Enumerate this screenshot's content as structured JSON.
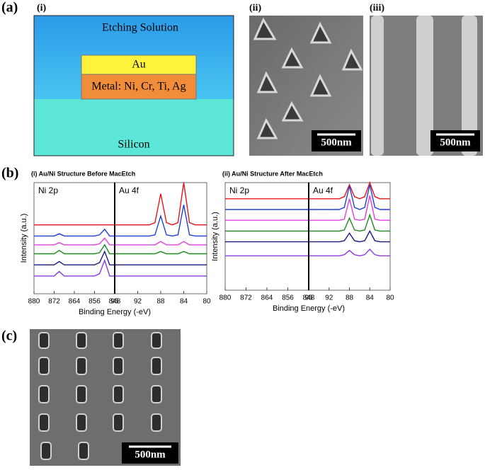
{
  "panels": {
    "a": {
      "label": "(a)",
      "i": {
        "label": "(i)",
        "solution": "Etching Solution",
        "au": "Au",
        "metal": "Metal: Ni, Cr, Ti, Ag",
        "silicon": "Silicon"
      },
      "ii": {
        "label": "(ii)",
        "scale": "500nm"
      },
      "iii": {
        "label": "(iii)",
        "scale": "500nm"
      }
    },
    "b": {
      "label": "(b)"
    },
    "c": {
      "label": "(c)",
      "scale": "500nm"
    }
  },
  "chart_data": [
    {
      "type": "line",
      "title": "(i) Au/Ni Structure Before MacEtch",
      "annotation": "Ni 2p",
      "y_label": "Intensity (a.u.)",
      "x_label": "Binding Energy (-eV)",
      "x": [
        880,
        878,
        876,
        874,
        872,
        870,
        868,
        866,
        864,
        862,
        860,
        858,
        856,
        854,
        852,
        850,
        848
      ],
      "xlim": [
        880,
        848
      ],
      "xticks": [
        880,
        872,
        864,
        856,
        848
      ],
      "ylim": [
        0,
        100
      ],
      "series": [
        {
          "color": "#e8141c",
          "values": [
            62,
            62,
            62,
            62,
            62,
            62,
            62,
            62,
            62,
            62,
            62,
            62,
            62,
            62,
            62,
            62,
            62
          ]
        },
        {
          "color": "#1f3fd6",
          "values": [
            52,
            52,
            52,
            52,
            52,
            54,
            52,
            52,
            52,
            52,
            52,
            52,
            52,
            53,
            58,
            52,
            52
          ]
        },
        {
          "color": "#e040e0",
          "values": [
            44,
            44,
            44,
            44,
            44,
            46,
            44,
            44,
            44,
            44,
            44,
            44,
            44,
            45,
            50,
            44,
            44
          ]
        },
        {
          "color": "#1f8a1f",
          "values": [
            36,
            36,
            36,
            36,
            36,
            39,
            36,
            36,
            36,
            36,
            36,
            36,
            36,
            37,
            44,
            36,
            36
          ]
        },
        {
          "color": "#1a1a80",
          "values": [
            26,
            26,
            26,
            26,
            26,
            29,
            26,
            26,
            26,
            26,
            26,
            26,
            26,
            28,
            38,
            26,
            26
          ]
        },
        {
          "color": "#8a3adf",
          "values": [
            16,
            16,
            16,
            16,
            16,
            20,
            16,
            16,
            16,
            16,
            16,
            16,
            16,
            18,
            30,
            16,
            16
          ]
        }
      ]
    },
    {
      "type": "line",
      "annotation": "Au 4f",
      "x": [
        96,
        95,
        94,
        93,
        92,
        91,
        90,
        89,
        88,
        87,
        86,
        85,
        84,
        83,
        82,
        81,
        80
      ],
      "xlim": [
        96,
        80
      ],
      "xticks": [
        96,
        92,
        88,
        84,
        80
      ],
      "ylim": [
        0,
        100
      ],
      "series": [
        {
          "color": "#e8141c",
          "values": [
            62,
            62,
            62,
            62,
            62,
            62,
            62,
            64,
            90,
            64,
            62,
            64,
            100,
            64,
            62,
            62,
            62
          ]
        },
        {
          "color": "#1f3fd6",
          "values": [
            52,
            52,
            52,
            52,
            52,
            52,
            52,
            53,
            70,
            53,
            52,
            53,
            80,
            53,
            52,
            52,
            52
          ]
        },
        {
          "color": "#e040e0",
          "values": [
            44,
            44,
            44,
            44,
            44,
            44,
            44,
            44,
            47,
            44,
            44,
            44,
            47,
            44,
            44,
            44,
            44
          ]
        },
        {
          "color": "#1f8a1f",
          "values": [
            36,
            36,
            36,
            36,
            36,
            36,
            36,
            36,
            38,
            36,
            36,
            36,
            38,
            36,
            36,
            36,
            36
          ]
        },
        {
          "color": "#1a1a80",
          "values": [
            26,
            26,
            26,
            26,
            26,
            26,
            26,
            26,
            26,
            26,
            26,
            26,
            26,
            26,
            26,
            26,
            26
          ]
        },
        {
          "color": "#8a3adf",
          "values": [
            16,
            16,
            16,
            16,
            16,
            16,
            16,
            16,
            16,
            16,
            16,
            16,
            16,
            16,
            16,
            16,
            16
          ]
        }
      ]
    },
    {
      "type": "line",
      "title": "(ii) Au/Ni Structure After MacEtch",
      "annotation": "Ni 2p",
      "y_label": "Intensity (a.u.)",
      "x_label": "Binding Energy (-eV)",
      "x": [
        880,
        878,
        876,
        874,
        872,
        870,
        868,
        866,
        864,
        862,
        860,
        858,
        856,
        854,
        852,
        850,
        848
      ],
      "xlim": [
        880,
        848
      ],
      "xticks": [
        880,
        872,
        864,
        856,
        848
      ],
      "ylim": [
        0,
        100
      ],
      "series": [
        {
          "color": "#e8141c",
          "values": [
            85,
            85,
            85,
            85,
            85,
            85,
            85,
            85,
            85,
            85,
            85,
            85,
            85,
            85,
            85,
            85,
            85
          ]
        },
        {
          "color": "#1f3fd6",
          "values": [
            75,
            75,
            75,
            75,
            75,
            75,
            75,
            75,
            75,
            75,
            75,
            75,
            75,
            75,
            75,
            75,
            75
          ]
        },
        {
          "color": "#e040e0",
          "values": [
            65,
            65,
            65,
            65,
            65,
            65,
            65,
            65,
            65,
            65,
            65,
            65,
            65,
            65,
            65,
            65,
            65
          ]
        },
        {
          "color": "#1f8a1f",
          "values": [
            55,
            55,
            55,
            55,
            55,
            55,
            55,
            55,
            55,
            55,
            55,
            55,
            55,
            55,
            55,
            55,
            55
          ]
        },
        {
          "color": "#1a1a80",
          "values": [
            45,
            45,
            45,
            45,
            45,
            45,
            45,
            45,
            45,
            45,
            45,
            45,
            45,
            45,
            45,
            45,
            45
          ]
        },
        {
          "color": "#8a3adf",
          "values": [
            32,
            32,
            32,
            32,
            32,
            32,
            32,
            32,
            32,
            32,
            32,
            32,
            32,
            32,
            32,
            32,
            32
          ]
        }
      ]
    },
    {
      "type": "line",
      "annotation": "Au 4f",
      "x": [
        96,
        95,
        94,
        93,
        92,
        91,
        90,
        89,
        88,
        87,
        86,
        85,
        84,
        83,
        82,
        81,
        80
      ],
      "xlim": [
        96,
        80
      ],
      "xticks": [
        96,
        92,
        88,
        84,
        80
      ],
      "ylim": [
        0,
        100
      ],
      "series": [
        {
          "color": "#e8141c",
          "values": [
            85,
            85,
            85,
            85,
            85,
            85,
            85,
            87,
            98,
            87,
            85,
            87,
            100,
            87,
            85,
            85,
            85
          ]
        },
        {
          "color": "#1f3fd6",
          "values": [
            75,
            75,
            75,
            75,
            75,
            75,
            75,
            77,
            97,
            77,
            75,
            77,
            98,
            77,
            75,
            75,
            75
          ]
        },
        {
          "color": "#e040e0",
          "values": [
            65,
            65,
            65,
            65,
            65,
            65,
            65,
            66,
            85,
            66,
            65,
            66,
            88,
            66,
            65,
            65,
            65
          ]
        },
        {
          "color": "#1f8a1f",
          "values": [
            55,
            55,
            55,
            55,
            55,
            55,
            55,
            56,
            67,
            56,
            55,
            56,
            70,
            56,
            55,
            55,
            55
          ]
        },
        {
          "color": "#1a1a80",
          "values": [
            45,
            45,
            45,
            45,
            45,
            45,
            45,
            46,
            53,
            46,
            45,
            46,
            55,
            46,
            45,
            45,
            45
          ]
        },
        {
          "color": "#8a3adf",
          "values": [
            32,
            32,
            32,
            32,
            32,
            32,
            32,
            33,
            37,
            33,
            32,
            33,
            38,
            33,
            32,
            32,
            32
          ]
        }
      ]
    }
  ]
}
